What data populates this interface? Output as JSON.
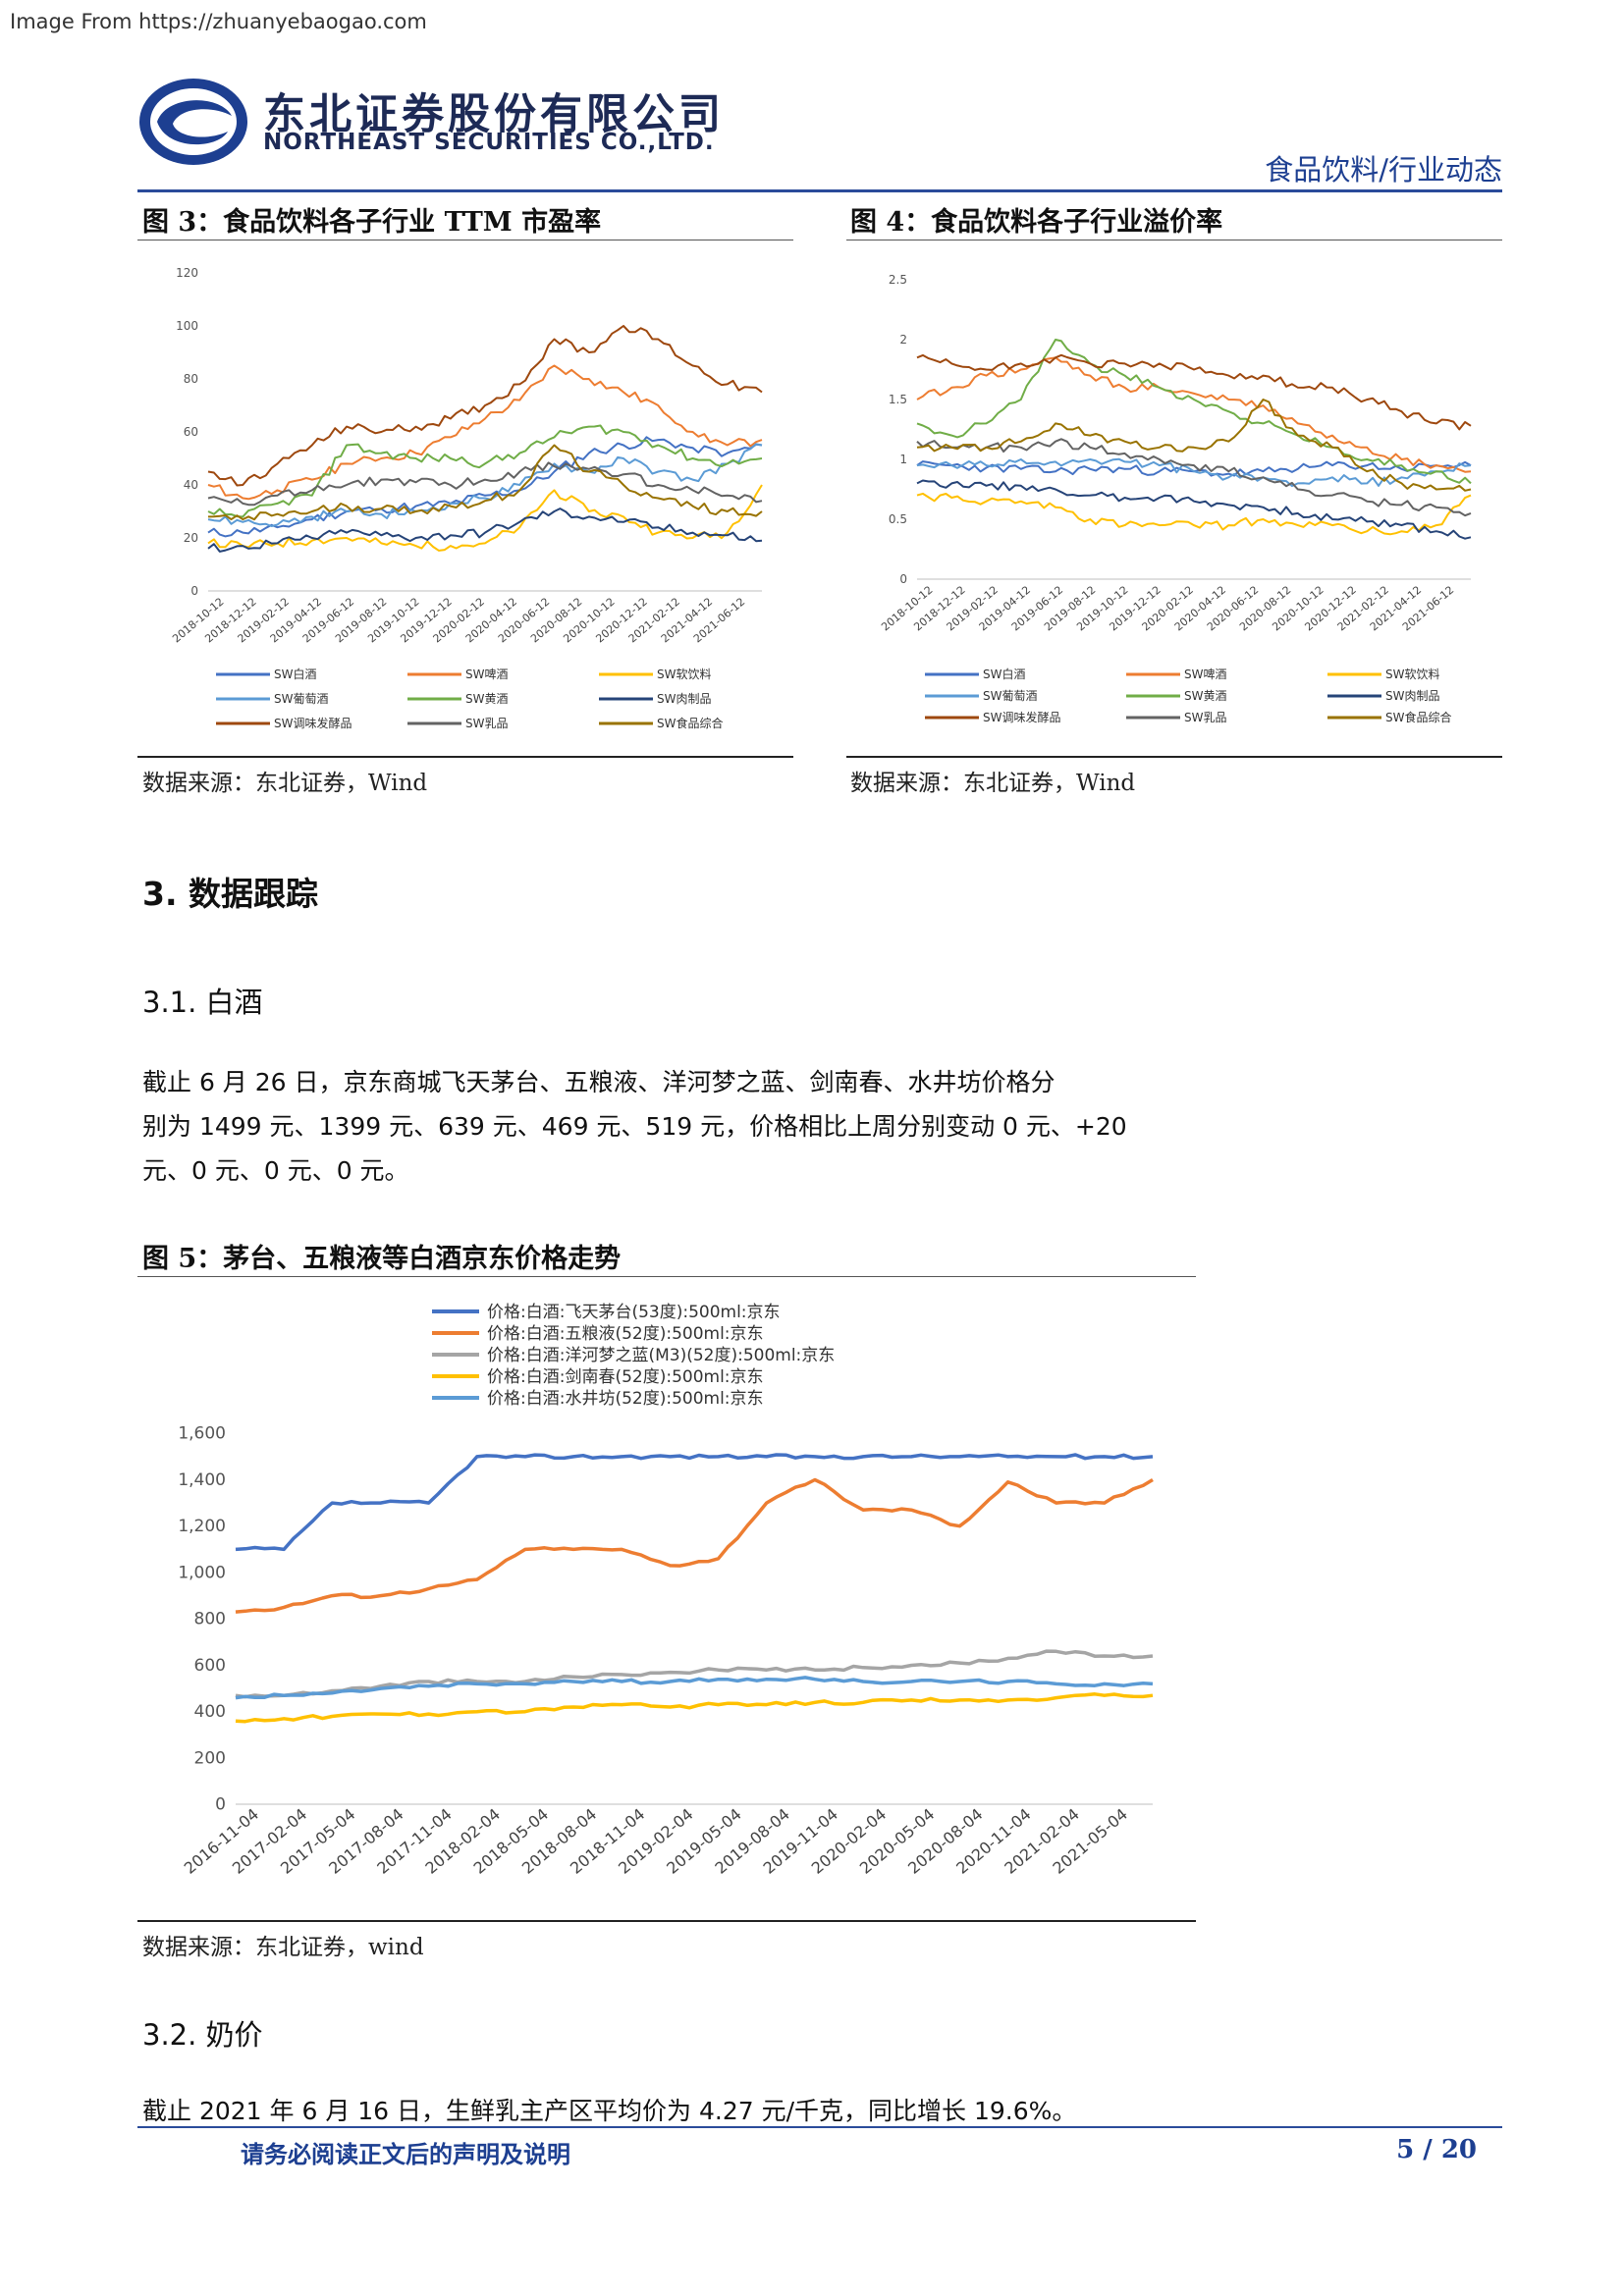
{
  "source_banner": "Image From https://zhuanyebaogao.com",
  "header": {
    "company_cn": "东北证券股份有限公司",
    "company_en": "NORTHEAST SECURITIES CO.,LTD.",
    "section": "食品饮料/行业动态"
  },
  "fig3": {
    "title": "图 3：食品饮料各子行业 TTM 市盈率",
    "source": "数据来源：东北证券，Wind",
    "yticks": [
      "0",
      "20",
      "40",
      "60",
      "80",
      "100",
      "120"
    ],
    "xticks": [
      "2018-10-12",
      "2018-12-12",
      "2019-02-12",
      "2019-04-12",
      "2019-06-12",
      "2019-08-12",
      "2019-10-12",
      "2019-12-12",
      "2020-02-12",
      "2020-04-12",
      "2020-06-12",
      "2020-08-12",
      "2020-10-12",
      "2020-12-12",
      "2021-02-12",
      "2021-04-12",
      "2021-06-12"
    ],
    "legend": [
      "SW白酒",
      "SW啤酒",
      "SW软饮料",
      "SW葡萄酒",
      "SW黄酒",
      "SW肉制品",
      "SW调味发酵品",
      "SW乳品",
      "SW食品综合"
    ]
  },
  "fig4": {
    "title": "图 4：食品饮料各子行业溢价率",
    "source": "数据来源：东北证券，Wind",
    "yticks": [
      "0",
      "0.5",
      "1",
      "1.5",
      "2",
      "2.5"
    ],
    "xticks": [
      "2018-10-12",
      "2018-12-12",
      "2019-02-12",
      "2019-04-12",
      "2019-06-12",
      "2019-08-12",
      "2019-10-12",
      "2019-12-12",
      "2020-02-12",
      "2020-04-12",
      "2020-06-12",
      "2020-08-12",
      "2020-10-12",
      "2020-12-12",
      "2021-02-12",
      "2021-04-12",
      "2021-06-12"
    ],
    "legend": [
      "SW白酒",
      "SW啤酒",
      "SW软饮料",
      "SW葡萄酒",
      "SW黄酒",
      "SW肉制品",
      "SW调味发酵品",
      "SW乳品",
      "SW食品综合"
    ]
  },
  "section3": {
    "heading": "3.  数据跟踪",
    "sub1": "3.1. 白酒",
    "para1_line1": "截止 6 月 26 日，京东商城飞天茅台、五粮液、洋河梦之蓝、剑南春、水井坊价格分",
    "para1_line2": "别为 1499 元、1399 元、639 元、469 元、519 元，价格相比上周分别变动 0 元、+20",
    "para1_line3": "元、0 元、0 元、0 元。",
    "sub2": "3.2. 奶价",
    "para2": "截止 2021 年 6 月 16 日，生鲜乳主产区平均价为 4.27 元/千克，同比增长 19.6%。"
  },
  "fig5": {
    "title": "图 5：茅台、五粮液等白酒京东价格走势",
    "source": "数据来源：东北证券，wind"
  },
  "chart_data": [
    {
      "type": "line",
      "title": "图 3：食品饮料各子行业 TTM 市盈率",
      "ylim": [
        0,
        120
      ],
      "x": [
        "2018-10-12",
        "2018-12-12",
        "2019-02-12",
        "2019-04-12",
        "2019-06-12",
        "2019-08-12",
        "2019-10-12",
        "2019-12-12",
        "2020-02-12",
        "2020-04-12",
        "2020-06-12",
        "2020-08-12",
        "2020-10-12",
        "2020-12-12",
        "2021-02-12",
        "2021-04-12",
        "2021-06-12"
      ],
      "legend_position": "bottom",
      "series": [
        {
          "name": "SW白酒",
          "color": "#4472c4",
          "values": [
            22,
            22,
            24,
            27,
            30,
            31,
            32,
            33,
            36,
            38,
            45,
            52,
            55,
            57,
            54,
            52,
            55
          ]
        },
        {
          "name": "SW啤酒",
          "color": "#ed7d31",
          "values": [
            40,
            35,
            38,
            42,
            48,
            50,
            52,
            58,
            65,
            72,
            85,
            80,
            75,
            70,
            60,
            55,
            57
          ]
        },
        {
          "name": "SW软饮料",
          "color": "#ffc000",
          "values": [
            18,
            17,
            18,
            19,
            20,
            18,
            17,
            17,
            18,
            24,
            38,
            30,
            28,
            22,
            20,
            22,
            40
          ]
        },
        {
          "name": "SW葡萄酒",
          "color": "#5b9bd5",
          "values": [
            27,
            26,
            25,
            28,
            30,
            29,
            30,
            33,
            35,
            40,
            48,
            45,
            50,
            45,
            42,
            48,
            55
          ]
        },
        {
          "name": "SW黄酒",
          "color": "#70ad47",
          "values": [
            30,
            28,
            33,
            36,
            55,
            52,
            50,
            50,
            48,
            52,
            58,
            62,
            60,
            55,
            50,
            48,
            50
          ]
        },
        {
          "name": "SW肉制品",
          "color": "#264478",
          "values": [
            16,
            17,
            18,
            20,
            22,
            21,
            20,
            21,
            22,
            26,
            30,
            28,
            26,
            24,
            22,
            21,
            19
          ]
        },
        {
          "name": "SW调味发酵品",
          "color": "#9e480e",
          "values": [
            45,
            40,
            48,
            55,
            62,
            60,
            62,
            65,
            70,
            78,
            95,
            90,
            100,
            95,
            85,
            78,
            75
          ]
        },
        {
          "name": "SW乳品",
          "color": "#636363",
          "values": [
            35,
            33,
            36,
            38,
            40,
            42,
            41,
            40,
            42,
            45,
            47,
            46,
            44,
            40,
            38,
            36,
            34
          ]
        },
        {
          "name": "SW食品综合",
          "color": "#997300",
          "values": [
            28,
            27,
            29,
            30,
            32,
            31,
            30,
            32,
            34,
            38,
            55,
            45,
            40,
            35,
            32,
            30,
            30
          ]
        }
      ]
    },
    {
      "type": "line",
      "title": "图 4：食品饮料各子行业溢价率",
      "ylim": [
        0,
        2.5
      ],
      "x": [
        "2018-10-12",
        "2018-12-12",
        "2019-02-12",
        "2019-04-12",
        "2019-06-12",
        "2019-08-12",
        "2019-10-12",
        "2019-12-12",
        "2020-02-12",
        "2020-04-12",
        "2020-06-12",
        "2020-08-12",
        "2020-10-12",
        "2020-12-12",
        "2021-02-12",
        "2021-04-12",
        "2021-06-12"
      ],
      "legend_position": "bottom",
      "series": [
        {
          "name": "SW白酒",
          "color": "#4472c4",
          "values": [
            0.95,
            0.95,
            0.93,
            0.92,
            0.9,
            0.92,
            0.92,
            0.9,
            0.9,
            0.88,
            0.9,
            0.92,
            0.95,
            0.95,
            0.92,
            0.95,
            0.95
          ]
        },
        {
          "name": "SW啤酒",
          "color": "#ed7d31",
          "values": [
            1.5,
            1.6,
            1.7,
            1.75,
            1.85,
            1.7,
            1.6,
            1.6,
            1.55,
            1.5,
            1.45,
            1.3,
            1.2,
            1.1,
            1.0,
            0.95,
            0.9
          ]
        },
        {
          "name": "SW软饮料",
          "color": "#ffc000",
          "values": [
            0.7,
            0.68,
            0.65,
            0.65,
            0.6,
            0.5,
            0.45,
            0.45,
            0.45,
            0.45,
            0.5,
            0.45,
            0.45,
            0.4,
            0.4,
            0.45,
            0.7
          ]
        },
        {
          "name": "SW葡萄酒",
          "color": "#5b9bd5",
          "values": [
            0.95,
            0.95,
            0.95,
            1.0,
            0.98,
            1.0,
            0.98,
            0.95,
            0.9,
            0.85,
            0.85,
            0.8,
            0.85,
            0.8,
            0.85,
            0.9,
            0.95
          ]
        },
        {
          "name": "SW黄酒",
          "color": "#70ad47",
          "values": [
            1.3,
            1.2,
            1.3,
            1.5,
            2.0,
            1.8,
            1.7,
            1.6,
            1.5,
            1.4,
            1.3,
            1.2,
            1.1,
            1.0,
            0.95,
            0.9,
            0.8
          ]
        },
        {
          "name": "SW肉制品",
          "color": "#264478",
          "values": [
            0.8,
            0.8,
            0.78,
            0.78,
            0.75,
            0.7,
            0.68,
            0.68,
            0.65,
            0.62,
            0.6,
            0.55,
            0.5,
            0.48,
            0.45,
            0.4,
            0.35
          ]
        },
        {
          "name": "SW调味发酵品",
          "color": "#9e480e",
          "values": [
            1.85,
            1.8,
            1.75,
            1.8,
            1.85,
            1.8,
            1.8,
            1.8,
            1.75,
            1.7,
            1.7,
            1.6,
            1.6,
            1.5,
            1.4,
            1.3,
            1.28
          ]
        },
        {
          "name": "SW乳品",
          "color": "#636363",
          "values": [
            1.15,
            1.1,
            1.1,
            1.1,
            1.15,
            1.1,
            1.05,
            1.0,
            0.95,
            0.9,
            0.85,
            0.75,
            0.7,
            0.65,
            0.62,
            0.6,
            0.55
          ]
        },
        {
          "name": "SW食品综合",
          "color": "#997300",
          "values": [
            1.1,
            1.1,
            1.1,
            1.15,
            1.3,
            1.2,
            1.15,
            1.1,
            1.1,
            1.15,
            1.5,
            1.2,
            1.1,
            0.9,
            0.8,
            0.75,
            0.75
          ]
        }
      ]
    },
    {
      "type": "line",
      "title": "图 5：茅台、五粮液等白酒京东价格走势",
      "ylim": [
        0,
        1600
      ],
      "yticks": [
        "0",
        "200",
        "400",
        "600",
        "800",
        "1,000",
        "1,200",
        "1,400",
        "1,600"
      ],
      "xticks": [
        "2016-11-04",
        "2017-02-04",
        "2017-05-04",
        "2017-08-04",
        "2017-11-04",
        "2018-02-04",
        "2018-05-04",
        "2018-08-04",
        "2018-11-04",
        "2019-02-04",
        "2019-05-04",
        "2019-08-04",
        "2019-11-04",
        "2020-02-04",
        "2020-05-04",
        "2020-08-04",
        "2020-11-04",
        "2021-02-04",
        "2021-05-04"
      ],
      "legend_position": "top",
      "series": [
        {
          "name": "价格:白酒:飞天茅台(53度):500ml:京东",
          "color": "#4472c4",
          "values": [
            1099,
            1099,
            1299,
            1299,
            1299,
            1499,
            1499,
            1499,
            1499,
            1499,
            1499,
            1499,
            1499,
            1499,
            1499,
            1499,
            1499,
            1499,
            1499,
            1499
          ]
        },
        {
          "name": "价格:白酒:五粮液(52度):500ml:京东",
          "color": "#ed7d31",
          "values": [
            829,
            849,
            899,
            899,
            929,
            969,
            1099,
            1099,
            1099,
            1029,
            1059,
            1299,
            1399,
            1269,
            1269,
            1199,
            1389,
            1299,
            1299,
            1399
          ]
        },
        {
          "name": "价格:白酒:洋河梦之蓝(M3)(52度):500ml:京东",
          "color": "#a5a5a5",
          "values": [
            469,
            469,
            489,
            509,
            529,
            529,
            529,
            549,
            559,
            569,
            579,
            579,
            579,
            589,
            599,
            609,
            629,
            659,
            639,
            639
          ]
        },
        {
          "name": "价格:白酒:剑南春(52度):500ml:京东",
          "color": "#ffc000",
          "values": [
            359,
            369,
            379,
            389,
            389,
            399,
            399,
            419,
            429,
            419,
            429,
            429,
            439,
            439,
            449,
            449,
            449,
            459,
            469,
            469
          ]
        },
        {
          "name": "价格:白酒:水井坊(52度):500ml:京东",
          "color": "#5b9bd5",
          "values": [
            459,
            469,
            479,
            499,
            509,
            519,
            519,
            529,
            529,
            529,
            539,
            539,
            539,
            529,
            529,
            529,
            529,
            519,
            519,
            519
          ]
        }
      ]
    }
  ]
}
